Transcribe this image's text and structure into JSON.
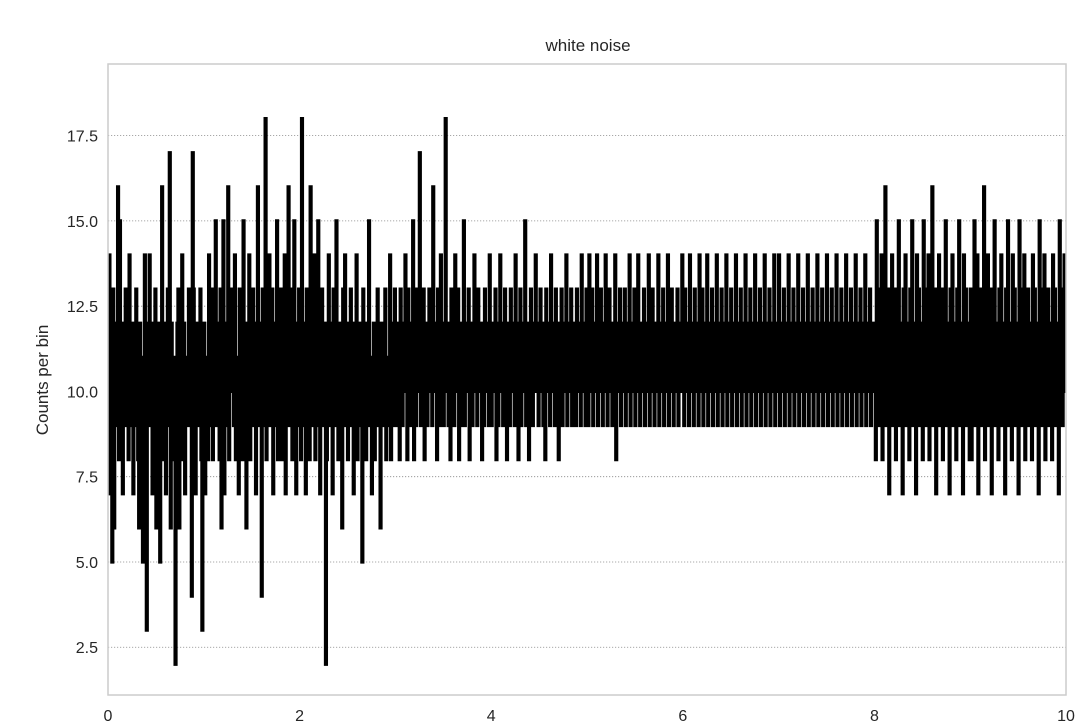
{
  "chart_data": {
    "type": "line",
    "title": "white noise",
    "xlabel": "",
    "ylabel": "Counts per bin",
    "xlim": [
      0,
      10
    ],
    "ylim": [
      1.1,
      19.6
    ],
    "xticks": [
      "0",
      "2",
      "4",
      "6",
      "8",
      "10"
    ],
    "yticks": [
      "2.5",
      "5.0",
      "7.5",
      "10.0",
      "12.5",
      "15.0",
      "17.5"
    ],
    "grid": "horizontal dotted",
    "line_color": "#000000",
    "step_style": "steps",
    "bin_width": 0.01,
    "series": [
      {
        "values": [
          7,
          14,
          11,
          8,
          5,
          13,
          6,
          10,
          12,
          9,
          16,
          8,
          15,
          12,
          9,
          7,
          12,
          10,
          13,
          9,
          11,
          8,
          14,
          9,
          10,
          12,
          7,
          10,
          9,
          13,
          11,
          8,
          6,
          12,
          10,
          9,
          5,
          11,
          14,
          8,
          3,
          12,
          10,
          14,
          9,
          11,
          7,
          12,
          8,
          13,
          6,
          10,
          9,
          12,
          5,
          11,
          16,
          8,
          10,
          12,
          7,
          10,
          13,
          9,
          17,
          6,
          12,
          9,
          8,
          11,
          2,
          10,
          12,
          13,
          6,
          11,
          9,
          14,
          8,
          12,
          7,
          10,
          11,
          9,
          13,
          12,
          10,
          4,
          17,
          13,
          12,
          7,
          12,
          10,
          11,
          9,
          13,
          8,
          3,
          12
        ]
      },
      {
        "values": [
          12,
          7,
          11,
          10,
          8,
          14,
          9,
          11,
          13,
          8,
          12,
          10,
          15,
          9,
          11,
          12,
          8,
          13,
          6,
          10,
          15,
          7,
          12,
          11,
          9,
          16,
          8,
          10,
          13,
          11,
          12,
          9,
          14,
          8,
          10,
          11,
          7,
          13,
          10,
          12,
          8,
          15,
          9,
          11,
          6,
          12,
          10,
          14,
          8,
          11,
          9,
          13,
          10,
          12,
          7,
          11,
          16,
          9,
          10,
          12,
          4,
          13,
          9,
          11,
          18,
          8,
          12,
          10,
          14,
          9,
          11,
          13,
          7,
          10,
          12,
          9,
          15,
          8,
          11,
          10,
          13,
          8,
          12,
          9,
          14,
          7,
          11,
          10,
          16,
          9,
          12,
          13,
          8,
          11,
          15,
          10,
          7,
          12,
          9,
          13
        ]
      },
      {
        "values": [
          10,
          8,
          18,
          12,
          9,
          11,
          7,
          13,
          10,
          12,
          8,
          16,
          9,
          11,
          10,
          14,
          8,
          12,
          9,
          15,
          10,
          7,
          11,
          13,
          9,
          10,
          12,
          2,
          8,
          11,
          14,
          9,
          12,
          10,
          7,
          13,
          11,
          9,
          15,
          10,
          8,
          12,
          9,
          11,
          6,
          13,
          10,
          14,
          9,
          12,
          8,
          11,
          10,
          13,
          9,
          12,
          7,
          11,
          10,
          14,
          8,
          9,
          11,
          12,
          10,
          5,
          13,
          9,
          11,
          8,
          12,
          10,
          15,
          9,
          11,
          7,
          10,
          12,
          8,
          11,
          9,
          13,
          10,
          12,
          6,
          11,
          9,
          12,
          10,
          13,
          8,
          11,
          9,
          10,
          14,
          8,
          12,
          9,
          11,
          13
        ]
      },
      {
        "values": [
          10,
          9,
          12,
          11,
          8,
          13,
          10,
          9,
          11,
          12,
          14,
          10,
          8,
          13,
          11,
          9,
          12,
          10,
          15,
          8,
          11,
          9,
          13,
          10,
          12,
          17,
          9,
          11,
          10,
          13,
          8,
          12,
          10,
          9,
          11,
          13,
          10,
          12,
          9,
          16,
          11,
          10,
          12,
          8,
          13,
          11,
          9,
          14,
          10,
          12,
          9,
          11,
          18,
          10,
          12,
          9,
          11,
          8,
          13,
          10,
          12,
          9,
          14,
          11,
          10,
          13,
          8,
          12,
          9,
          11,
          10,
          15,
          9,
          12,
          11,
          10,
          13,
          8,
          12,
          10,
          9,
          11,
          14,
          10,
          12,
          9,
          13,
          11,
          10,
          12,
          8,
          11,
          9,
          13,
          10,
          12,
          11,
          9,
          14,
          10
        ]
      },
      {
        "values": [
          9,
          12,
          11,
          10,
          13,
          8,
          12,
          9,
          11,
          14,
          10,
          12,
          9,
          11,
          13,
          10,
          8,
          12,
          11,
          9,
          13,
          10,
          12,
          11,
          9,
          14,
          10,
          12,
          8,
          11,
          13,
          9,
          10,
          12,
          11,
          15,
          9,
          10,
          12,
          8,
          11,
          13,
          10,
          9,
          12,
          11,
          14,
          10,
          12,
          9,
          11,
          13,
          10,
          12,
          9,
          11,
          8,
          13,
          10,
          12,
          11,
          9,
          14,
          10,
          12,
          11,
          9,
          13,
          10,
          12,
          8,
          11,
          10,
          13,
          9,
          12,
          11,
          10,
          14,
          9,
          12,
          10,
          11,
          13,
          9,
          12,
          10,
          11,
          9,
          13,
          10,
          12,
          11,
          9,
          14,
          10,
          12,
          11,
          9,
          13
        ]
      },
      {
        "values": [
          12,
          9,
          14,
          10,
          11,
          13,
          9,
          12,
          10,
          11,
          14,
          9,
          12,
          10,
          13,
          11,
          9,
          12,
          10,
          14,
          11,
          9,
          12,
          13,
          10,
          11,
          9,
          12,
          10,
          14,
          8,
          12,
          11,
          10,
          13,
          9,
          12,
          10,
          11,
          13,
          9,
          12,
          11,
          10,
          14,
          9,
          12,
          10,
          11,
          13,
          9,
          12,
          10,
          14,
          11,
          9,
          12,
          10,
          11,
          13,
          9,
          12,
          10,
          11,
          14,
          9,
          12,
          10,
          13,
          11,
          9,
          12,
          10,
          11,
          14,
          9,
          12,
          10,
          11,
          13,
          9,
          12,
          10,
          11,
          14,
          9,
          12,
          10,
          13,
          11,
          9,
          12,
          10,
          11,
          13,
          9,
          12,
          10,
          11,
          14
        ]
      },
      {
        "values": [
          12,
          9,
          13,
          10,
          11,
          12,
          9,
          14,
          10,
          11,
          12,
          9,
          13,
          10,
          11,
          12,
          9,
          14,
          10,
          11,
          13,
          9,
          12,
          10,
          11,
          14,
          9,
          12,
          10,
          11,
          13,
          9,
          12,
          10,
          11,
          14,
          9,
          12,
          10,
          11,
          13,
          9,
          12,
          10,
          11,
          14,
          9,
          12,
          10,
          11,
          13,
          9,
          12,
          10,
          11,
          14,
          9,
          12,
          10,
          11,
          13,
          9,
          12,
          10,
          11,
          14,
          9,
          12,
          10,
          11,
          13,
          9,
          12,
          10,
          11,
          14,
          9,
          12,
          10,
          11,
          13,
          9,
          12,
          10,
          11,
          14,
          9,
          12,
          10,
          11,
          13,
          9,
          12,
          10,
          11,
          14,
          9,
          12,
          10,
          11
        ]
      },
      {
        "values": [
          14,
          9,
          12,
          10,
          11,
          13,
          9,
          12,
          10,
          11,
          14,
          9,
          12,
          10,
          11,
          13,
          9,
          12,
          10,
          11,
          14,
          9,
          12,
          10,
          11,
          13,
          9,
          12,
          10,
          11,
          14,
          9,
          12,
          10,
          11,
          13,
          9,
          12,
          10,
          11,
          14,
          9,
          12,
          10,
          11,
          13,
          9,
          12,
          10,
          11,
          14,
          9,
          12,
          10,
          11,
          13,
          9,
          12,
          10,
          11,
          14,
          9,
          12,
          10,
          11,
          13,
          9,
          12,
          10,
          11,
          14,
          9,
          12,
          10,
          11,
          13,
          9,
          12,
          10,
          11,
          14,
          9,
          12,
          10,
          11,
          13,
          9,
          12,
          10,
          11,
          14,
          9,
          12,
          10,
          11,
          13,
          9,
          12,
          10,
          11
        ]
      },
      {
        "values": [
          12,
          8,
          15,
          10,
          13,
          9,
          11,
          14,
          8,
          12,
          10,
          16,
          9,
          11,
          13,
          7,
          12,
          10,
          14,
          9,
          11,
          13,
          8,
          12,
          10,
          15,
          9,
          11,
          12,
          7,
          13,
          10,
          14,
          9,
          11,
          12,
          8,
          13,
          10,
          15,
          9,
          11,
          12,
          7,
          14,
          10,
          13,
          9,
          11,
          12,
          8,
          15,
          10,
          13,
          9,
          11,
          14,
          8,
          12,
          10,
          16,
          9,
          11,
          13,
          7,
          12,
          10,
          14,
          9,
          11,
          13,
          8,
          12,
          10,
          15,
          9,
          11,
          12,
          7,
          13,
          10,
          14,
          9,
          11,
          12,
          8,
          13,
          10,
          15,
          9,
          11,
          12,
          7,
          14,
          10,
          13,
          9,
          11,
          12,
          8
        ]
      },
      {
        "values": [
          13,
          8,
          12,
          10,
          15,
          9,
          11,
          14,
          7,
          12,
          10,
          13,
          9,
          11,
          16,
          8,
          12,
          10,
          14,
          9,
          11,
          13,
          7,
          12,
          10,
          15,
          9,
          11,
          12,
          8,
          13,
          10,
          14,
          9,
          11,
          12,
          7,
          13,
          10,
          15,
          9,
          11,
          12,
          8,
          14,
          10,
          13,
          9,
          11,
          12,
          7,
          15,
          10,
          13,
          9,
          11,
          14,
          8,
          12,
          10,
          13,
          9,
          11,
          12,
          8,
          14,
          10,
          13,
          9,
          11,
          12,
          7,
          15,
          10,
          13,
          9,
          11,
          14,
          8,
          12,
          10,
          13,
          9,
          11,
          12,
          8,
          14,
          10,
          13,
          9,
          11,
          12,
          7,
          15,
          10,
          13,
          9,
          11,
          14,
          10
        ]
      }
    ]
  }
}
